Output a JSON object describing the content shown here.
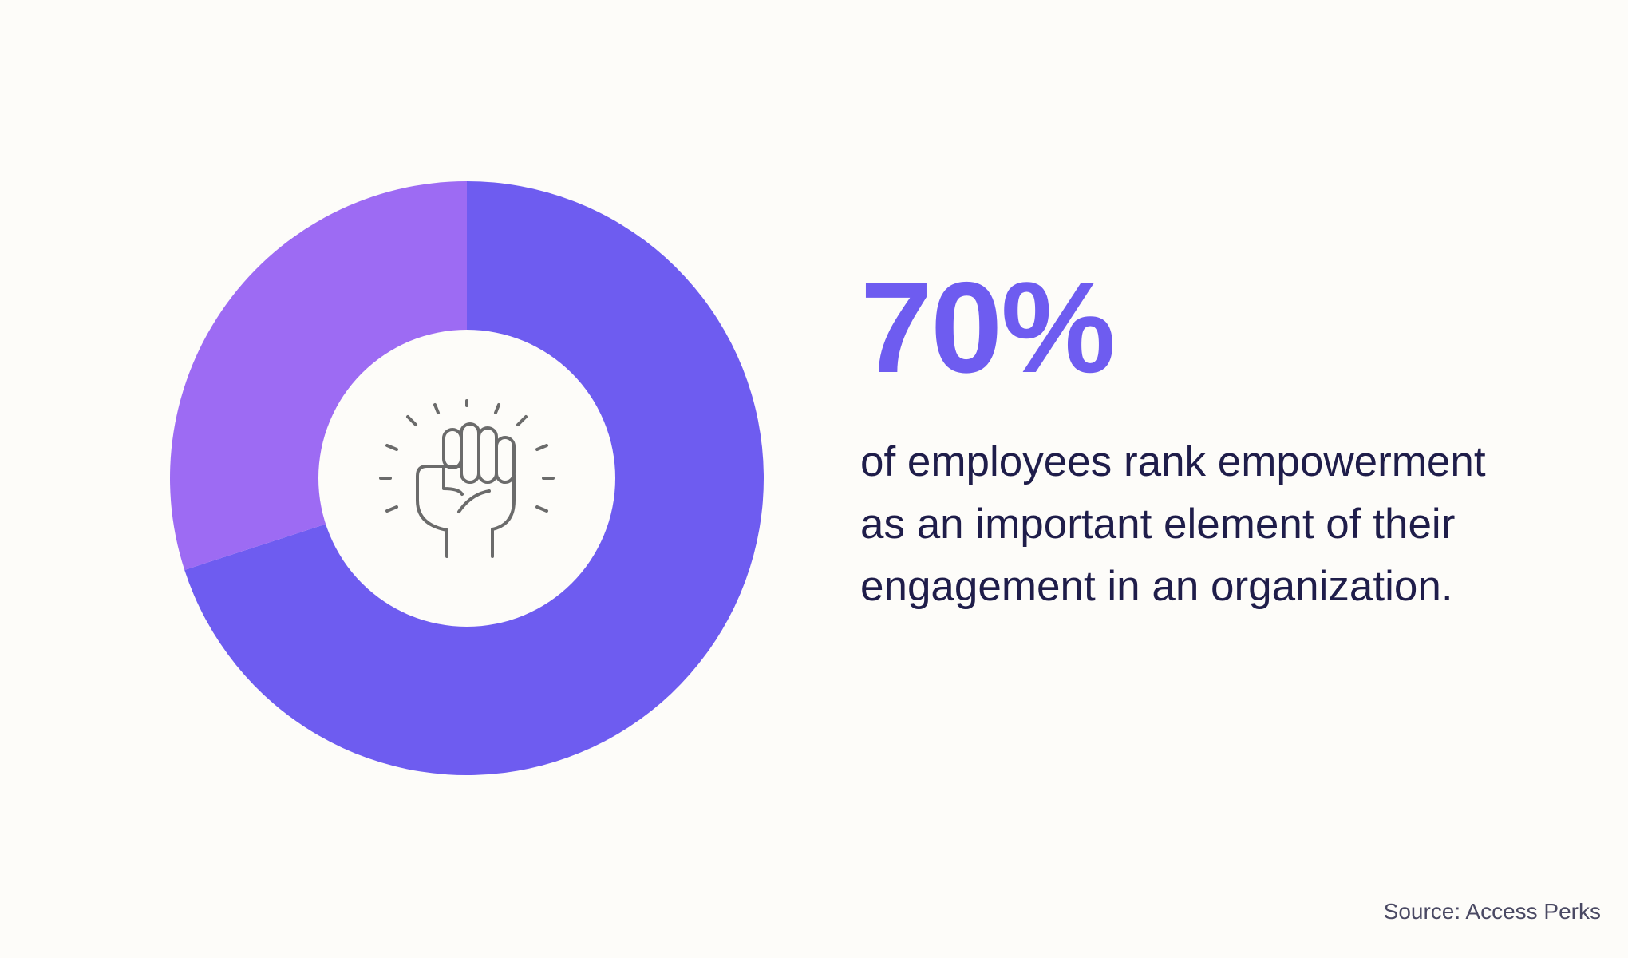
{
  "chart_data": {
    "type": "pie",
    "donut": true,
    "slices": [
      {
        "value": 70
      },
      {
        "value": 30
      }
    ],
    "colors": [
      "#6e5cf0",
      "#9d6bf3"
    ],
    "center_icon": "raised-fist-icon"
  },
  "stat": {
    "value": "70%",
    "lines": [
      "of employees rank empowerment",
      "as an important element of their",
      "engagement in an organization."
    ]
  },
  "source": "Source: Access Perks",
  "colors": {
    "background": "#fdfcf9",
    "accent": "#6e5cf0",
    "secondary": "#9d6bf3",
    "text": "#1f1d4a",
    "icon": "#6b6b6b"
  }
}
